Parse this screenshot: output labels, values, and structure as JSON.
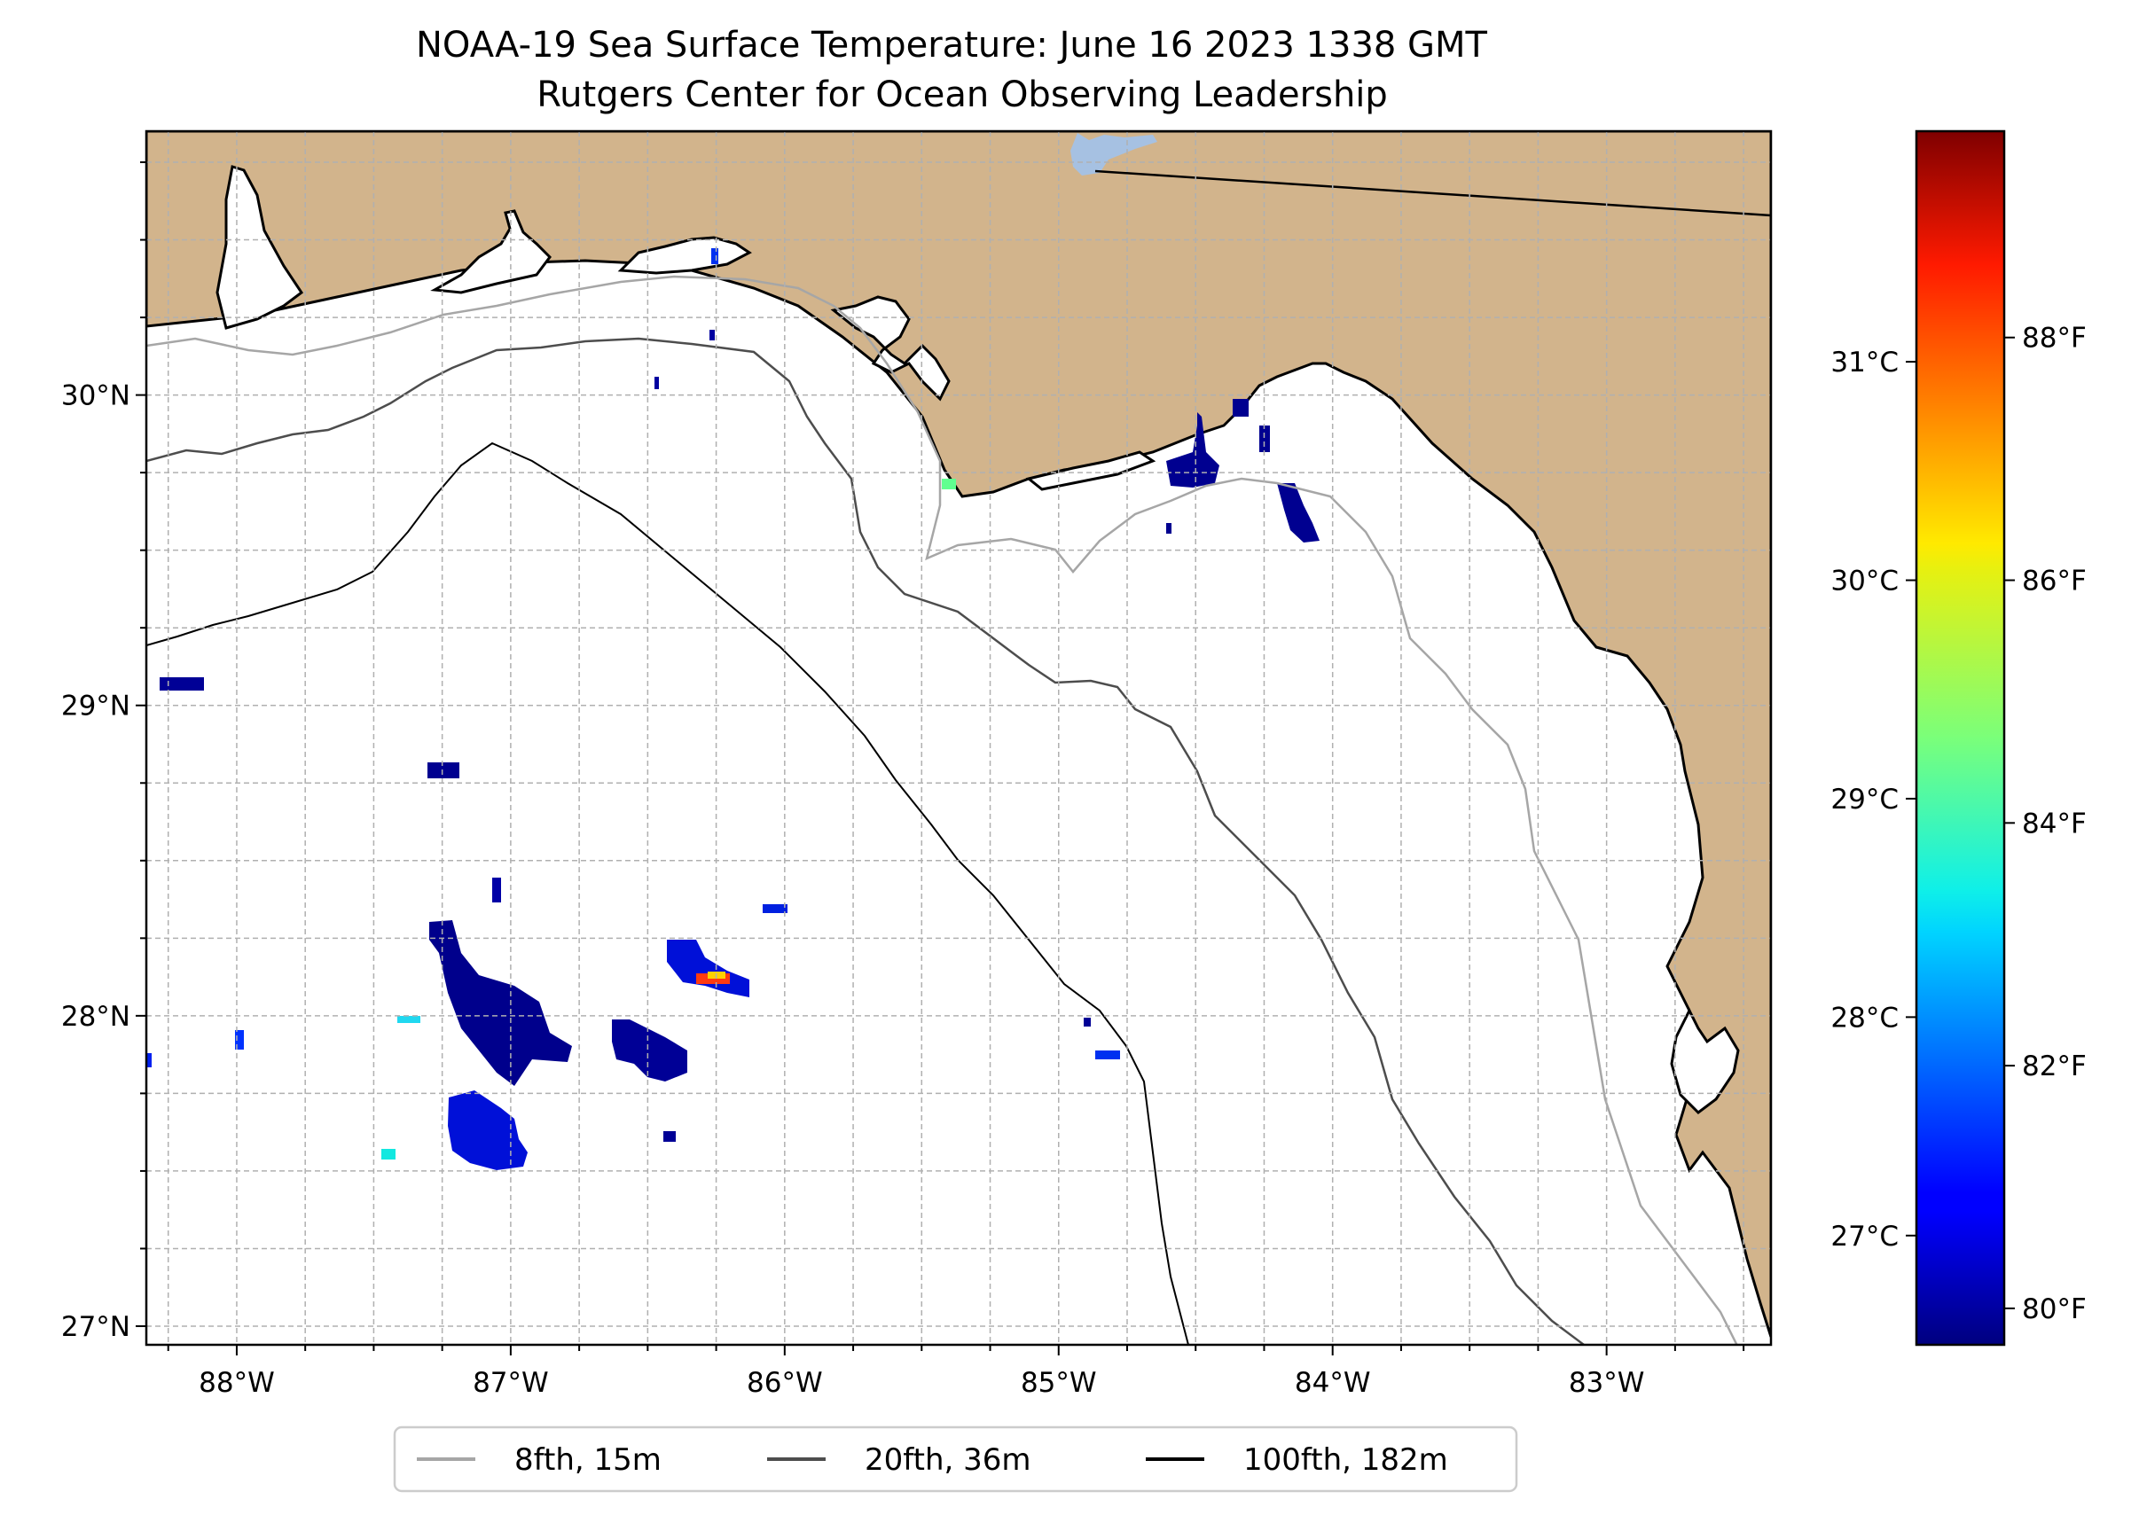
{
  "title": {
    "line1": "NOAA-19 Sea Surface Temperature: June 16 2023 1338 GMT",
    "line2": "Rutgers Center for Ocean Observing Leadership"
  },
  "map": {
    "lon_range": [
      -88.33,
      -82.4
    ],
    "lat_range": [
      26.94,
      30.85
    ],
    "land_color": "#D2B48C",
    "ocean_color": "#FFFFFF",
    "gridlines": true,
    "lon_ticks": [
      {
        "value": -88,
        "label": "88°W"
      },
      {
        "value": -87,
        "label": "87°W"
      },
      {
        "value": -86,
        "label": "86°W"
      },
      {
        "value": -85,
        "label": "85°W"
      },
      {
        "value": -84,
        "label": "84°W"
      },
      {
        "value": -83,
        "label": "83°W"
      }
    ],
    "lat_ticks": [
      {
        "value": 30,
        "label": "30°N"
      },
      {
        "value": 29,
        "label": "29°N"
      },
      {
        "value": 28,
        "label": "28°N"
      },
      {
        "value": 27,
        "label": "27°N"
      }
    ]
  },
  "colorbar": {
    "colormap": "jet",
    "range_f": [
      79.7,
      89.7
    ],
    "celsius_ticks": [
      {
        "value": 31,
        "label": "31°C"
      },
      {
        "value": 30,
        "label": "30°C"
      },
      {
        "value": 29,
        "label": "29°C"
      },
      {
        "value": 28,
        "label": "28°C"
      },
      {
        "value": 27,
        "label": "27°C"
      }
    ],
    "fahrenheit_ticks": [
      {
        "value": 88,
        "label": "88°F"
      },
      {
        "value": 86,
        "label": "86°F"
      },
      {
        "value": 84,
        "label": "84°F"
      },
      {
        "value": 82,
        "label": "82°F"
      },
      {
        "value": 80,
        "label": "80°F"
      }
    ]
  },
  "legend": {
    "position": "bottom-center",
    "items": [
      {
        "label": "8fth, 15m",
        "color": "#A6A6A6"
      },
      {
        "label": "20fth, 36m",
        "color": "#4D4D4D"
      },
      {
        "label": "100fth, 182m",
        "color": "#000000"
      }
    ]
  }
}
